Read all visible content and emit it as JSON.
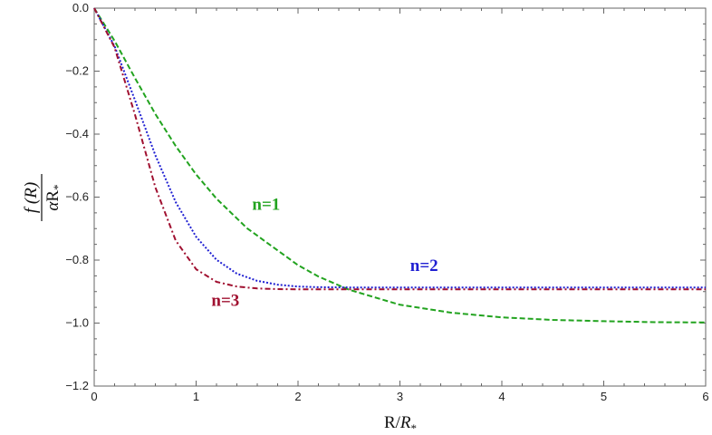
{
  "chart_data": {
    "type": "line",
    "title": "",
    "xlabel": "R/R*",
    "xlabel_parts": {
      "main": "R/",
      "italic": "R",
      "sub": "*"
    },
    "ylabel": "f (R) / αR*",
    "ylabel_parts": {
      "numerator": "f (R)",
      "den_alpha": "α",
      "den_R": "R",
      "den_sub": "*"
    },
    "xlim": [
      0,
      6
    ],
    "ylim": [
      -1.2,
      0.0
    ],
    "xticks": [
      0,
      1,
      2,
      3,
      4,
      5,
      6
    ],
    "xtick_labels": [
      "0",
      "1",
      "2",
      "3",
      "4",
      "5",
      "6"
    ],
    "yticks": [
      0.0,
      -0.2,
      -0.4,
      -0.6,
      -0.8,
      -1.0,
      -1.2
    ],
    "ytick_labels": [
      "0.0",
      "−0.2",
      "−0.4",
      "−0.6",
      "−0.8",
      "−1.0",
      "−1.2"
    ],
    "grid": false,
    "series": [
      {
        "name": "n=1",
        "label": "n=1",
        "color": "#22a31f",
        "dash": "dashed",
        "x": [
          0,
          0.2,
          0.4,
          0.6,
          0.8,
          1.0,
          1.2,
          1.5,
          2.0,
          2.2,
          2.5,
          3.0,
          3.5,
          4.0,
          4.5,
          5.0,
          5.5,
          6.0
        ],
        "y": [
          0,
          -0.104,
          -0.222,
          -0.336,
          -0.438,
          -0.528,
          -0.605,
          -0.699,
          -0.816,
          -0.852,
          -0.894,
          -0.942,
          -0.967,
          -0.982,
          -0.99,
          -0.994,
          -0.997,
          -0.998
        ]
      },
      {
        "name": "n=2",
        "label": "n=2",
        "color": "#1f1fd2",
        "dash": "dotted",
        "x": [
          0,
          0.2,
          0.4,
          0.6,
          0.8,
          1.0,
          1.2,
          1.4,
          1.6,
          1.8,
          2.0,
          2.2,
          2.5,
          3.0,
          4.0,
          5.0,
          6.0
        ],
        "y": [
          0,
          -0.121,
          -0.292,
          -0.467,
          -0.616,
          -0.726,
          -0.799,
          -0.843,
          -0.866,
          -0.878,
          -0.884,
          -0.886,
          -0.887,
          -0.887,
          -0.887,
          -0.887,
          -0.887
        ]
      },
      {
        "name": "n=3",
        "label": "n=3",
        "color": "#a01030",
        "dash": "dashdot",
        "x": [
          0,
          0.2,
          0.4,
          0.6,
          0.8,
          1.0,
          1.2,
          1.4,
          1.6,
          1.8,
          2.0,
          2.5,
          3.0,
          4.0,
          5.0,
          6.0
        ],
        "y": [
          0,
          -0.125,
          -0.338,
          -0.569,
          -0.738,
          -0.829,
          -0.869,
          -0.884,
          -0.89,
          -0.892,
          -0.893,
          -0.893,
          -0.893,
          -0.893,
          -0.893,
          -0.893
        ]
      }
    ],
    "annotations": [
      {
        "text": "n=1",
        "series": "n=1",
        "x": 1.55,
        "y": -0.64
      },
      {
        "text": "n=2",
        "series": "n=2",
        "x": 3.1,
        "y": -0.835
      },
      {
        "text": "n=3",
        "series": "n=3",
        "x": 1.15,
        "y": -0.945
      }
    ]
  }
}
